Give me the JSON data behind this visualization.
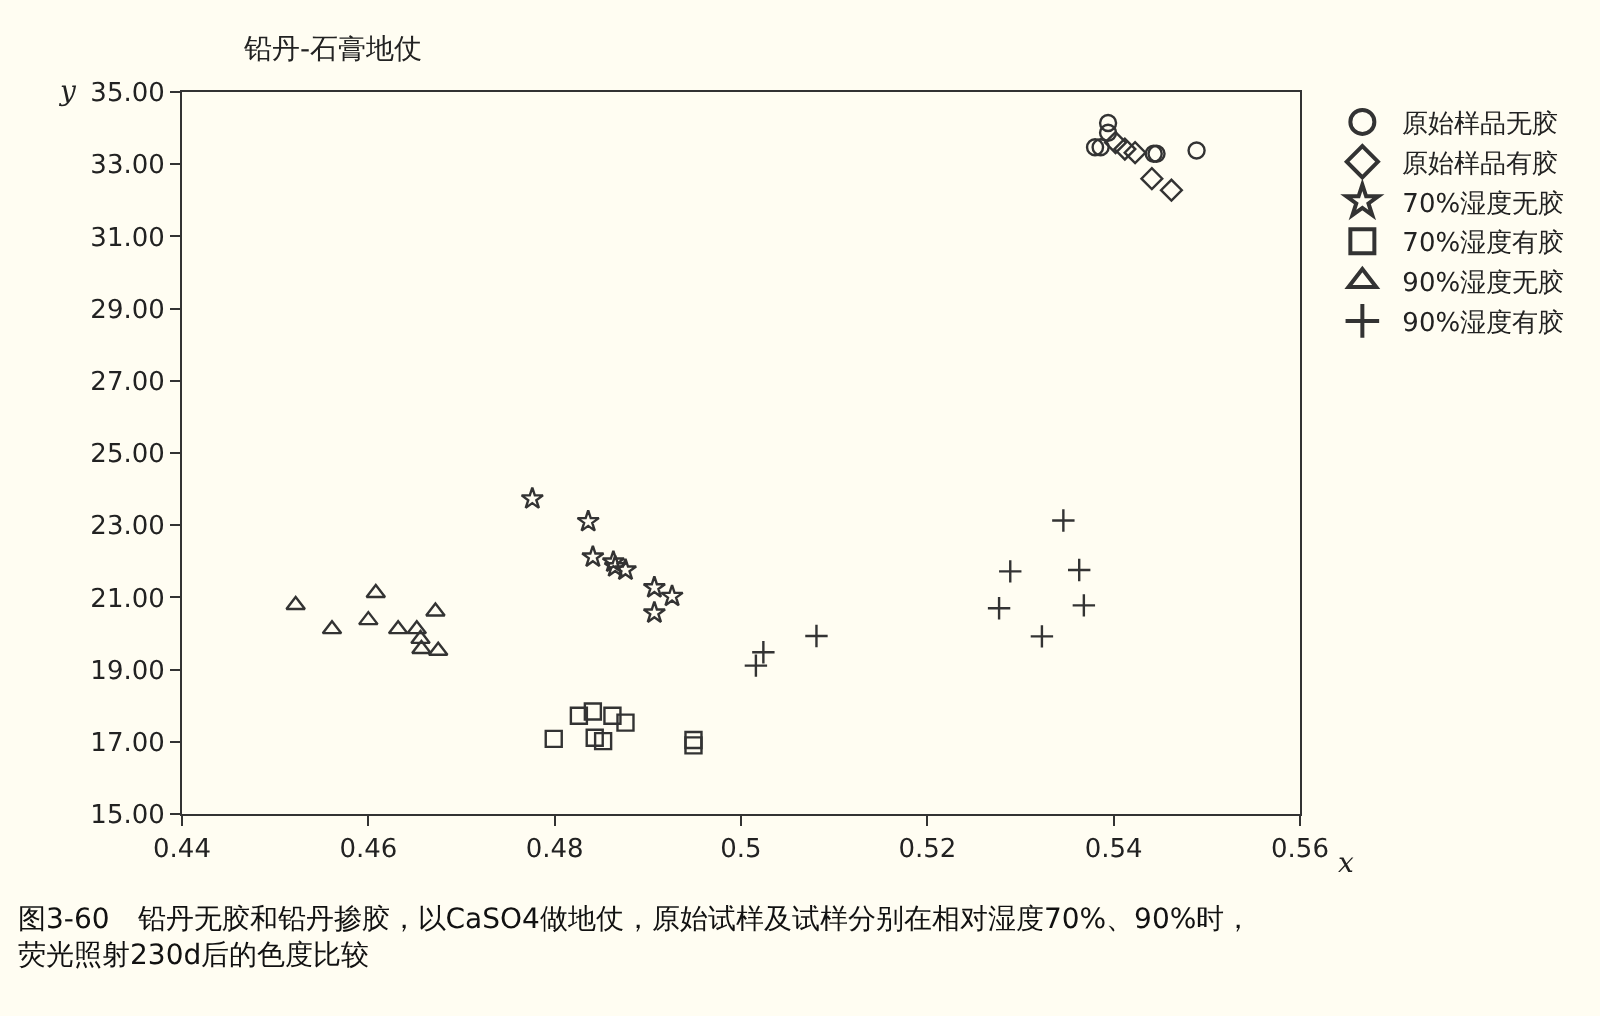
{
  "chart_data": {
    "type": "scatter",
    "title": "铅丹-石膏地仗",
    "xlabel": "x",
    "ylabel": "y",
    "xlim": [
      0.44,
      0.56
    ],
    "ylim": [
      15,
      35
    ],
    "xticks": [
      0.44,
      0.46,
      0.48,
      0.5,
      0.52,
      0.54,
      0.56
    ],
    "yticks": [
      {
        "value": 15,
        "label": "15.00"
      },
      {
        "value": 17,
        "label": "17.00"
      },
      {
        "value": 19,
        "label": "19.00"
      },
      {
        "value": 21,
        "label": "21.00"
      },
      {
        "value": 23,
        "label": "23.00"
      },
      {
        "value": 25,
        "label": "25.00"
      },
      {
        "value": 27,
        "label": "27.00"
      },
      {
        "value": 29,
        "label": "29.00"
      },
      {
        "value": 31,
        "label": "31.00"
      },
      {
        "value": 33,
        "label": "33.00"
      },
      {
        "value": 35,
        "label": "35.00"
      }
    ],
    "grid": false,
    "legend": "right",
    "series": [
      {
        "name": "原始样品无胶",
        "color": "#333333",
        "marker": "circle",
        "x": [
          0.538,
          0.5386,
          0.5394,
          0.5394,
          0.5443,
          0.5446,
          0.5489
        ],
        "values": [
          33.47,
          33.47,
          34.14,
          33.87,
          33.29,
          33.29,
          33.38
        ]
      },
      {
        "name": "原始样品有胶",
        "color": "#333333",
        "marker": "diamond",
        "x": [
          0.5402,
          0.5412,
          0.5423,
          0.5441,
          0.5462
        ],
        "values": [
          33.6,
          33.42,
          33.32,
          32.6,
          32.28
        ]
      },
      {
        "name": "70%湿度无胶",
        "color": "#333333",
        "marker": "star",
        "x": [
          0.4776,
          0.4836,
          0.4841,
          0.4863,
          0.4865,
          0.4876,
          0.4907,
          0.4907,
          0.4926
        ],
        "values": [
          23.73,
          23.1,
          22.12,
          21.98,
          21.85,
          21.76,
          21.27,
          20.57,
          21.03
        ]
      },
      {
        "name": "70%湿度有胶",
        "color": "#333333",
        "marker": "square",
        "x": [
          0.4799,
          0.4826,
          0.4841,
          0.4843,
          0.4852,
          0.4862,
          0.4876,
          0.4949,
          0.4949
        ],
        "values": [
          17.08,
          17.72,
          17.84,
          17.11,
          17.02,
          17.72,
          17.53,
          16.9,
          17.05
        ]
      },
      {
        "name": "90%湿度无胶",
        "color": "#333333",
        "marker": "triangle",
        "x": [
          0.4522,
          0.4561,
          0.46,
          0.4608,
          0.4632,
          0.4652,
          0.4656,
          0.4657,
          0.4672,
          0.4675
        ],
        "values": [
          20.79,
          20.12,
          20.37,
          21.12,
          20.12,
          20.12,
          19.85,
          19.57,
          20.61,
          19.52
        ]
      },
      {
        "name": "90%湿度有胶",
        "color": "#333333",
        "marker": "cross",
        "x": [
          0.5016,
          0.5024,
          0.5081,
          0.5277,
          0.5289,
          0.5323,
          0.5346,
          0.5363,
          0.5368
        ],
        "values": [
          19.11,
          19.48,
          19.93,
          20.7,
          21.72,
          19.92,
          23.13,
          21.76,
          20.78
        ]
      }
    ],
    "annotations": [
      "图3-60　铅丹无胶和铅丹掺胶，以CaSO4做地仗，原始试样及试样分别在相对湿度70%、90%时，荧光照射230d后的色度比较"
    ]
  }
}
